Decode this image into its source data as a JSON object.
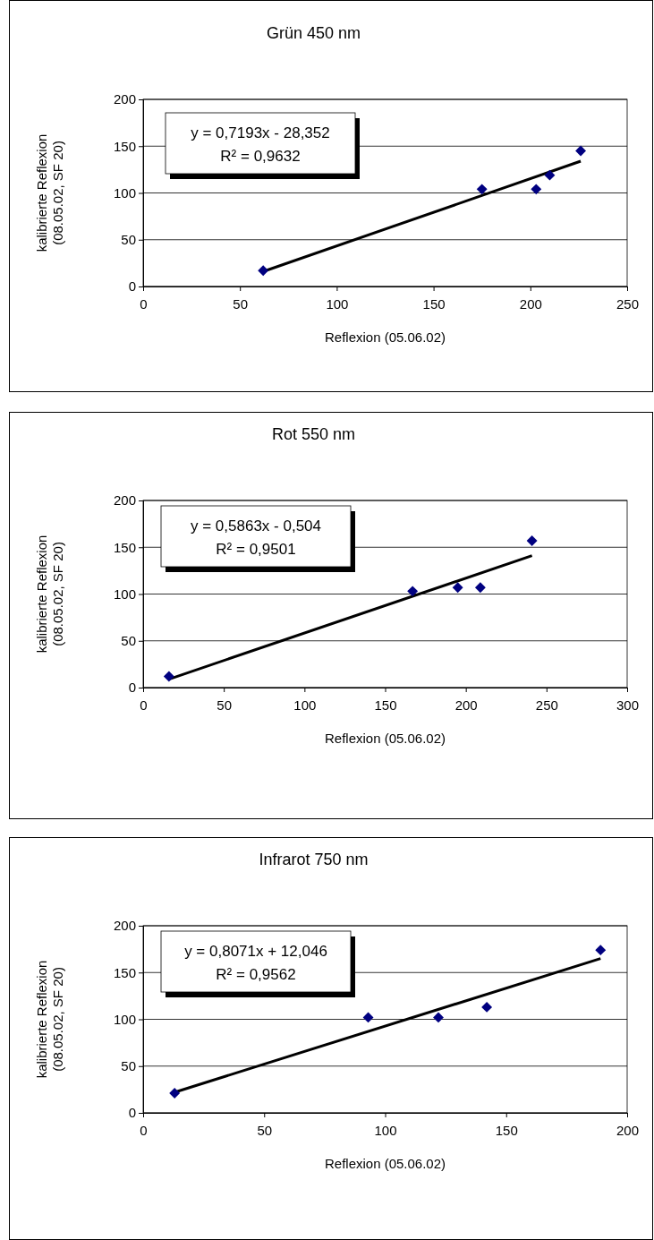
{
  "chart_data": [
    {
      "type": "scatter",
      "title": "Grün 450 nm",
      "xlabel": "Reflexion (05.06.02)",
      "ylabel": "kalibrierte Reflexion\n(08.05.02, SF 20)",
      "xlim": [
        0,
        250
      ],
      "xticks": [
        0,
        50,
        100,
        150,
        200,
        250
      ],
      "ylim": [
        0,
        200
      ],
      "yticks": [
        0,
        50,
        100,
        150,
        200
      ],
      "grid": "y",
      "annotations": [
        "y = 0,7193x - 28,352",
        "R² = 0,9632"
      ],
      "series": [
        {
          "marker": "diamond",
          "color": "#000080",
          "x": [
            62,
            175,
            203,
            210,
            226
          ],
          "values": [
            17,
            104,
            104,
            119,
            145
          ]
        },
        {
          "type": "line",
          "marker": "none",
          "color": "#000000",
          "x": [
            62,
            226
          ],
          "values": [
            16,
            134
          ]
        }
      ]
    },
    {
      "type": "scatter",
      "title": "Rot 550 nm",
      "xlabel": "Reflexion (05.06.02)",
      "ylabel": "kalibrierte Reflexion\n(08.05.02, SF 20)",
      "xlim": [
        0,
        300
      ],
      "xticks": [
        0,
        50,
        100,
        150,
        200,
        250,
        300
      ],
      "ylim": [
        0,
        200
      ],
      "yticks": [
        0,
        50,
        100,
        150,
        200
      ],
      "grid": "y",
      "annotations": [
        "y = 0,5863x - 0,504",
        "R² = 0,9501"
      ],
      "series": [
        {
          "marker": "diamond",
          "color": "#000080",
          "x": [
            16,
            167,
            195,
            209,
            241
          ],
          "values": [
            12,
            103,
            107,
            107,
            157
          ]
        },
        {
          "type": "line",
          "marker": "none",
          "color": "#000000",
          "x": [
            16,
            241
          ],
          "values": [
            9,
            141
          ]
        }
      ]
    },
    {
      "type": "scatter",
      "title": "Infrarot 750 nm",
      "xlabel": "Reflexion (05.06.02)",
      "ylabel": "kalibrierte Reflexion\n(08.05.02, SF 20)",
      "xlim": [
        0,
        200
      ],
      "xticks": [
        0,
        50,
        100,
        150,
        200
      ],
      "ylim": [
        0,
        200
      ],
      "yticks": [
        0,
        50,
        100,
        150,
        200
      ],
      "grid": "y",
      "annotations": [
        "y = 0,8071x + 12,046",
        "R² = 0,9562"
      ],
      "series": [
        {
          "marker": "diamond",
          "color": "#000080",
          "x": [
            13,
            93,
            122,
            142,
            189
          ],
          "values": [
            21,
            102,
            102,
            113,
            174
          ]
        },
        {
          "type": "line",
          "marker": "none",
          "color": "#000000",
          "x": [
            13,
            189
          ],
          "values": [
            22,
            165
          ]
        }
      ]
    }
  ]
}
